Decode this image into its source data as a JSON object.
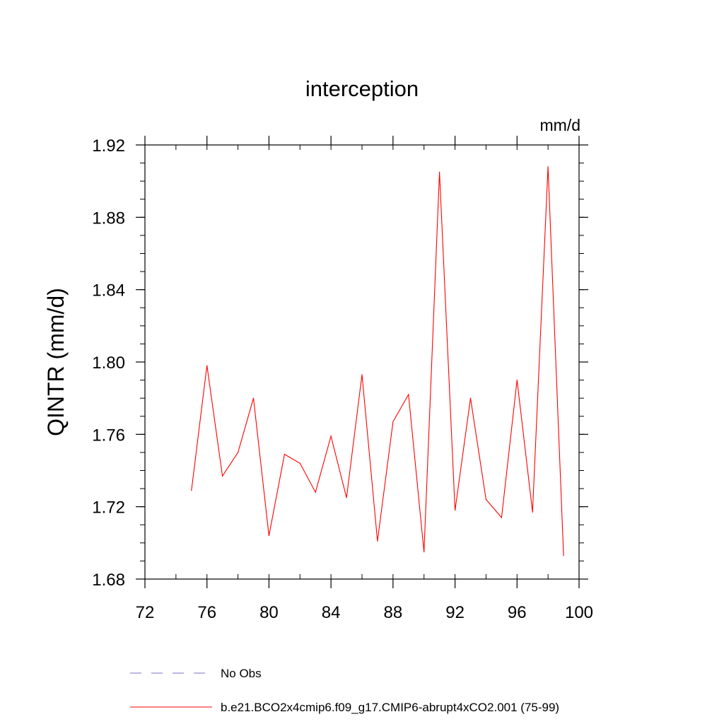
{
  "chart_data": {
    "type": "line",
    "title": "interception",
    "units": "mm/d",
    "ylabel": "QINTR  (mm/d)",
    "xlabel": "",
    "xlim": [
      72,
      100
    ],
    "ylim": [
      1.68,
      1.92
    ],
    "xticks": [
      {
        "value": 72,
        "label": "72"
      },
      {
        "value": 76,
        "label": "76"
      },
      {
        "value": 80,
        "label": "80"
      },
      {
        "value": 84,
        "label": "84"
      },
      {
        "value": 88,
        "label": "88"
      },
      {
        "value": 92,
        "label": "92"
      },
      {
        "value": 96,
        "label": "96"
      },
      {
        "value": 100,
        "label": "100"
      }
    ],
    "yticks": [
      {
        "value": 1.68,
        "label": "1.68"
      },
      {
        "value": 1.72,
        "label": "1.72"
      },
      {
        "value": 1.76,
        "label": "1.76"
      },
      {
        "value": 1.8,
        "label": "1.80"
      },
      {
        "value": 1.84,
        "label": "1.84"
      },
      {
        "value": 1.88,
        "label": "1.88"
      },
      {
        "value": 1.92,
        "label": "1.92"
      }
    ],
    "x_minor_step": 2,
    "y_minor_step": 0.01,
    "grid": false,
    "series": [
      {
        "name": "b.e21.BCO2x4cmip6.f09_g17.CMIP6-abrupt4xCO2.001 (75-99)",
        "color": "#ff0000",
        "style": "solid",
        "x": [
          75,
          76,
          77,
          78,
          79,
          80,
          81,
          82,
          83,
          84,
          85,
          86,
          87,
          88,
          89,
          90,
          91,
          92,
          93,
          94,
          95,
          96,
          97,
          98,
          99
        ],
        "values": [
          1.729,
          1.798,
          1.737,
          1.75,
          1.78,
          1.704,
          1.749,
          1.744,
          1.728,
          1.759,
          1.725,
          1.793,
          1.701,
          1.767,
          1.782,
          1.695,
          1.905,
          1.718,
          1.78,
          1.724,
          1.714,
          1.79,
          1.717,
          1.908,
          1.693
        ]
      }
    ],
    "legend": {
      "placement": "bottom-left",
      "entries": [
        {
          "label": "No Obs",
          "color": "#7b6fd0",
          "style": "dashed"
        },
        {
          "label": "b.e21.BCO2x4cmip6.f09_g17.CMIP6-abrupt4xCO2.001 (75-99)",
          "color": "#ff0000",
          "style": "solid"
        }
      ]
    }
  }
}
